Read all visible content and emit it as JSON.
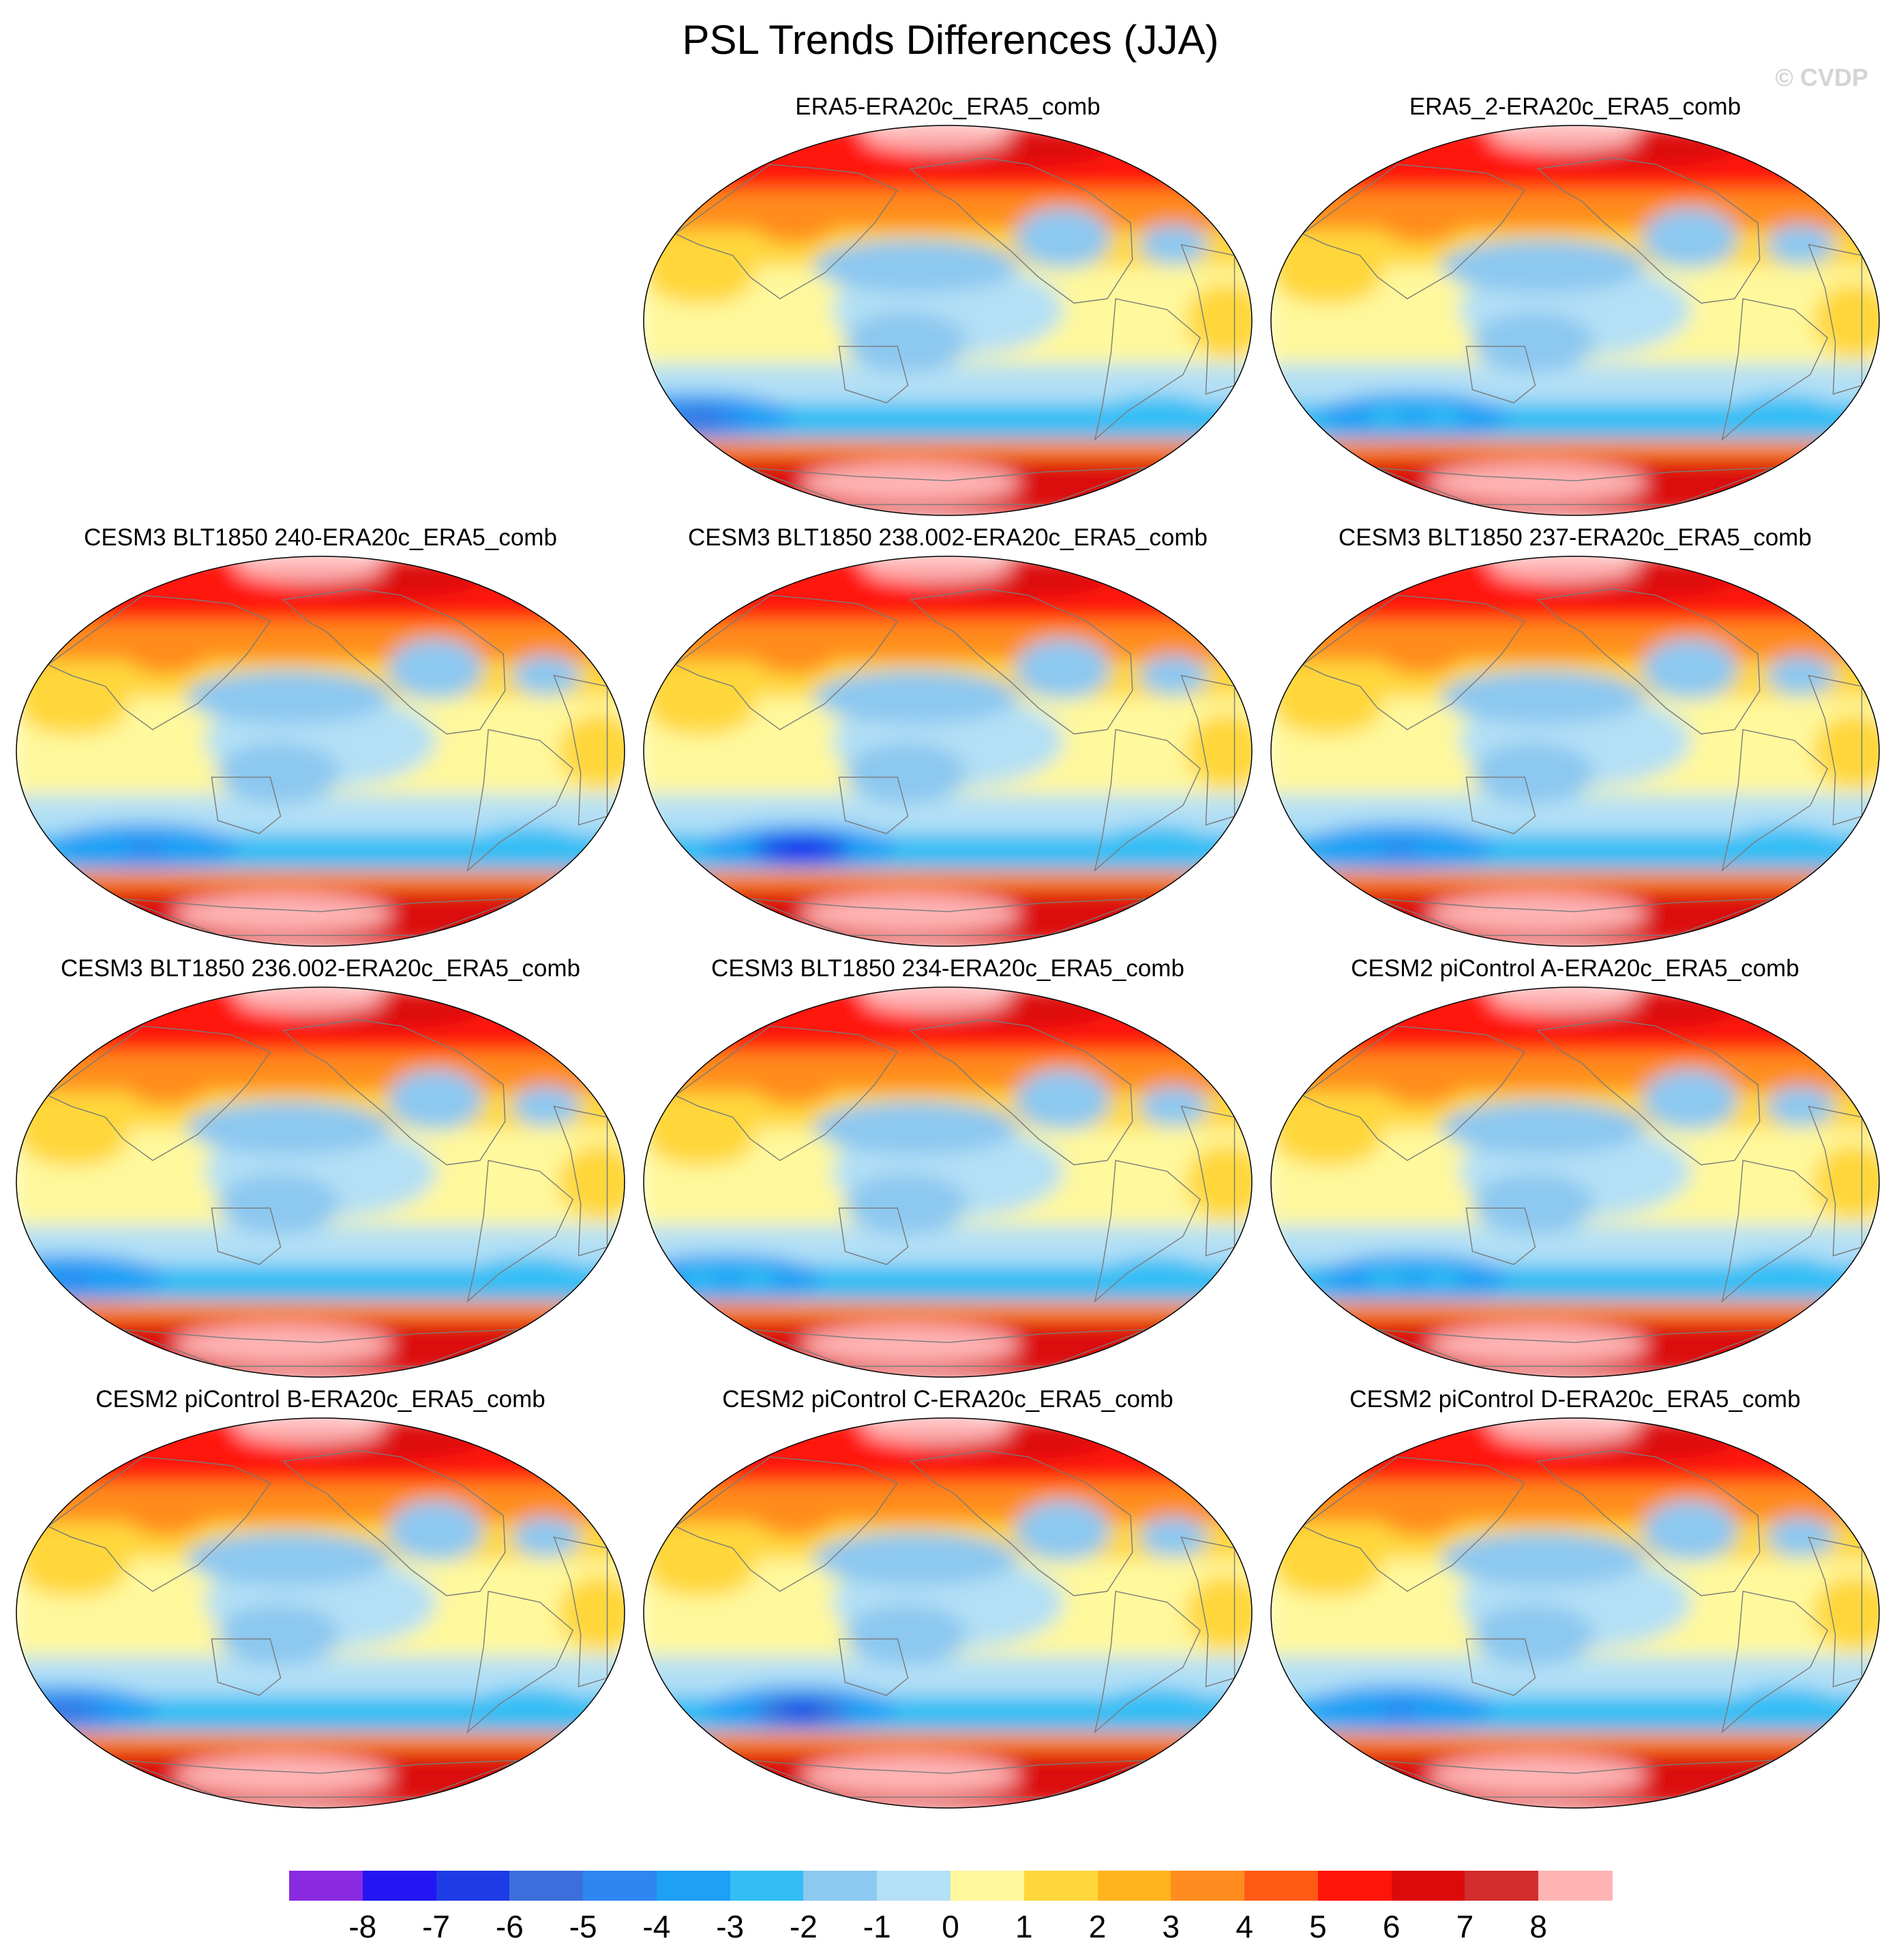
{
  "title": "PSL Trends Differences (JJA)",
  "watermark": "© CVDP",
  "chart_data": {
    "type": "heatmap",
    "title": "PSL Trends Differences (JJA)",
    "season": "JJA",
    "layout": "4x3 grid, top-left cell empty",
    "projection": "Robinson",
    "colorbar": {
      "orientation": "horizontal",
      "placement": "bottom",
      "levels": [
        -8,
        -7,
        -6,
        -5,
        -4,
        -3,
        -2,
        -1,
        0,
        1,
        2,
        3,
        4,
        5,
        6,
        7,
        8
      ],
      "tick_labels": [
        "-8",
        "-7",
        "-6",
        "-5",
        "-4",
        "-3",
        "-2",
        "-1",
        "0",
        "1",
        "2",
        "3",
        "4",
        "5",
        "6",
        "7",
        "8"
      ],
      "colors": [
        "#8a2be2",
        "#2416f2",
        "#1e3ce6",
        "#3c6fdc",
        "#2e86f0",
        "#1ea0f5",
        "#32bef5",
        "#8cc8f0",
        "#b4e0f5",
        "#fff89c",
        "#ffd73a",
        "#ffb41e",
        "#ff8c1e",
        "#ff5a14",
        "#ff140a",
        "#dc0a0a",
        "#d22d2d",
        "#ffb4b4"
      ]
    },
    "panels": [
      {
        "label": "ERA5-ERA20c_ERA5_comb",
        "sh_low_lon": -170,
        "sh_low_value": -6
      },
      {
        "label": "ERA5_2-ERA20c_ERA5_comb",
        "sh_low_lon": -110,
        "sh_low_value": -4
      },
      {
        "label": "CESM3 BLT1850 240-ERA20c_ERA5_comb",
        "sh_low_lon": -120,
        "sh_low_value": -5
      },
      {
        "label": "CESM3 BLT1850 238.002-ERA20c_ERA5_comb",
        "sh_low_lon": -100,
        "sh_low_value": -8
      },
      {
        "label": "CESM3 BLT1850 237-ERA20c_ERA5_comb",
        "sh_low_lon": -120,
        "sh_low_value": -5
      },
      {
        "label": "CESM3 BLT1850 236.002-ERA20c_ERA5_comb",
        "sh_low_lon": -170,
        "sh_low_value": -5
      },
      {
        "label": "CESM3 BLT1850 234-ERA20c_ERA5_comb",
        "sh_low_lon": -150,
        "sh_low_value": -4
      },
      {
        "label": "CESM2 piControl A-ERA20c_ERA5_comb",
        "sh_low_lon": -110,
        "sh_low_value": -4
      },
      {
        "label": "CESM2 piControl B-ERA20c_ERA5_comb",
        "sh_low_lon": -175,
        "sh_low_value": -6
      },
      {
        "label": "CESM2 piControl C-ERA20c_ERA5_comb",
        "sh_low_lon": -100,
        "sh_low_value": -7
      },
      {
        "label": "CESM2 piControl D-ERA20c_ERA5_comb",
        "sh_low_lon": -120,
        "sh_low_value": -5
      }
    ]
  }
}
